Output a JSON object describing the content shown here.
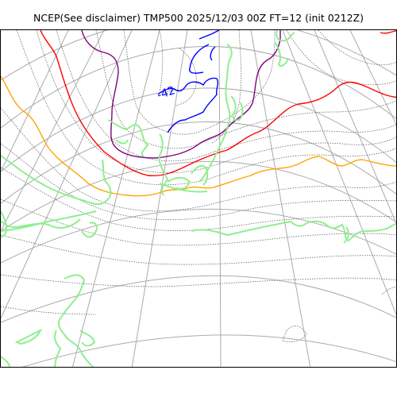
{
  "title": "NCEP(See disclaimer) TMP500 2025/12/03 00Z FT=12 (init 0212Z)",
  "contour_label": "-42",
  "colors": {
    "coastline": "#7ee07e",
    "graticule": "#aaaaaa",
    "isotherm_dotted": "#666666",
    "contour_blue": "#0000ff",
    "contour_purple": "#800080",
    "contour_red": "#ff0000",
    "contour_orange": "#ffa500",
    "contour_green": "#90ee90"
  }
}
